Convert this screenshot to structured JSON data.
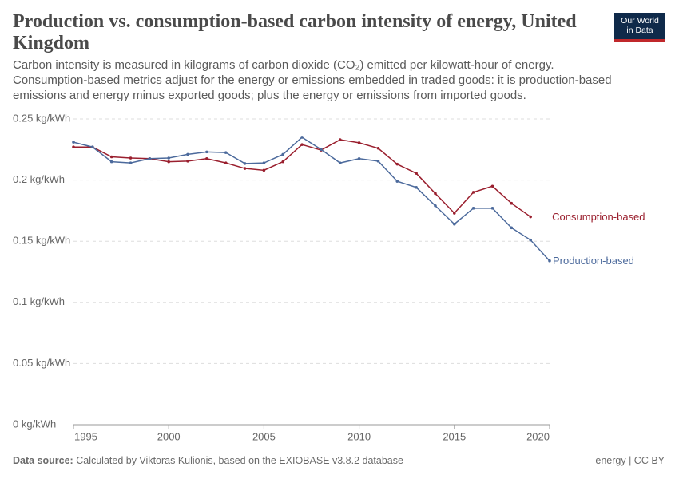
{
  "chart_data": {
    "type": "line",
    "title": "Production vs. consumption-based carbon intensity of energy, United Kingdom",
    "subtitle": "Carbon intensity is measured in kilograms of carbon dioxide (CO₂) emitted per kilowatt-hour of energy. Consumption-based metrics adjust for the energy or emissions embedded in traded goods: it is production-based emissions and energy minus exported goods; plus the energy or emissions from imported goods.",
    "logo": [
      "Our World",
      "in Data"
    ],
    "source_label": "Data source:",
    "source": "Calculated by Viktoras Kulionis, based on the EXIOBASE v3.8.2 database",
    "license": "energy | CC BY",
    "x": [
      1995,
      1996,
      1997,
      1998,
      1999,
      2000,
      2001,
      2002,
      2003,
      2004,
      2005,
      2006,
      2007,
      2008,
      2009,
      2010,
      2011,
      2012,
      2013,
      2014,
      2015,
      2016,
      2017,
      2018,
      2019,
      2020
    ],
    "series": [
      {
        "name": "Consumption-based",
        "color": "#9a1f2e",
        "values": [
          0.227,
          0.227,
          0.219,
          0.218,
          0.2175,
          0.215,
          0.2155,
          0.2175,
          0.214,
          0.2095,
          0.208,
          0.215,
          0.229,
          0.2245,
          0.233,
          0.2305,
          0.226,
          0.213,
          0.2055,
          0.189,
          0.173,
          0.19,
          0.195,
          0.181,
          0.17,
          null
        ]
      },
      {
        "name": "Production-based",
        "color": "#4c6a9c",
        "values": [
          0.231,
          0.227,
          0.215,
          0.214,
          0.2175,
          0.218,
          0.221,
          0.223,
          0.2225,
          0.2135,
          0.214,
          0.221,
          0.235,
          0.225,
          0.214,
          0.2175,
          0.2155,
          0.199,
          0.194,
          0.179,
          0.164,
          0.177,
          0.177,
          0.161,
          0.151,
          0.134
        ]
      }
    ],
    "xlim": [
      1995,
      2020
    ],
    "xticks": [
      1995,
      2000,
      2005,
      2010,
      2015,
      2020
    ],
    "ylim": [
      0,
      0.25
    ],
    "yticks": [
      {
        "value": 0,
        "label": "0 kg/kWh"
      },
      {
        "value": 0.05,
        "label": "0.05 kg/kWh"
      },
      {
        "value": 0.1,
        "label": "0.1 kg/kWh"
      },
      {
        "value": 0.15,
        "label": "0.15 kg/kWh"
      },
      {
        "value": 0.2,
        "label": "0.2 kg/kWh"
      },
      {
        "value": 0.25,
        "label": "0.25 kg/kWh"
      }
    ],
    "grid": true
  }
}
